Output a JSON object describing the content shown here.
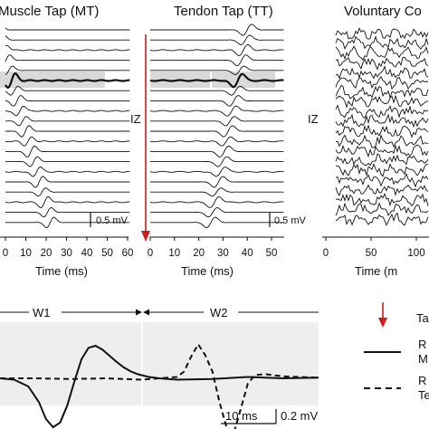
{
  "panels": {
    "mt": {
      "title": "Muscle Tap (MT)",
      "xlabel": "Time (ms)",
      "xticks": [
        "0",
        "10",
        "20",
        "30",
        "40",
        "50",
        "60"
      ],
      "scalebar": "0.5 mV",
      "iz_label": "IZ"
    },
    "tt": {
      "title": "Tendon Tap (TT)",
      "xlabel": "Time (ms)",
      "xticks": [
        "0",
        "10",
        "20",
        "30",
        "40",
        "50"
      ],
      "scalebar": "0.5 mV"
    },
    "vc": {
      "title": "Voluntary Co",
      "xlabel": "Time (m",
      "xticks": [
        "0",
        "50",
        "100"
      ],
      "iz_label": "IZ"
    }
  },
  "bottom": {
    "window1": "W1",
    "window2": "W2",
    "time_scalebar": "10 ms",
    "amp_scalebar": "0.2 mV"
  },
  "legend": {
    "tap_label": "Ta",
    "line1_label_a": "R",
    "line1_label_b": "M",
    "line2_label_a": "R",
    "line2_label_b": "Te"
  },
  "colors": {
    "tap_arrow": "#cc1f1f",
    "shade": "#d9d9d9",
    "bottom_bg": "#eeeeee",
    "trace": "#111111"
  },
  "chart_data": [
    {
      "type": "line",
      "panel": "Muscle Tap (MT)",
      "xlabel": "Time (ms)",
      "xlim": [
        0,
        60
      ],
      "channels": 20,
      "highlighted_channel": 6,
      "shaded_window_ms": [
        0,
        52
      ],
      "scalebar_mV": 0.5,
      "peak_latency_ms": [
        {
          "channel": 6,
          "latency": 3
        },
        {
          "channel": 20,
          "latency": 22
        }
      ]
    },
    {
      "type": "line",
      "panel": "Tendon Tap (TT)",
      "xlabel": "Time (ms)",
      "xlim": [
        0,
        50
      ],
      "channels": 20,
      "highlighted_channel": 6,
      "shaded_window_ms": [
        0,
        47
      ],
      "scalebar_mV": 0.5,
      "peak_latency_ms": [
        {
          "channel": 1,
          "latency": 40
        },
        {
          "channel": 20,
          "latency": 25
        }
      ]
    },
    {
      "type": "line",
      "panel": "Voluntary Co",
      "xlabel": "Time (m",
      "xlim": [
        0,
        110
      ],
      "channels": 20
    },
    {
      "type": "line",
      "panel": "bottom",
      "windows": [
        "W1",
        "W2"
      ],
      "scalebars": {
        "time_ms": 10,
        "amplitude_mV": 0.2
      },
      "series": [
        {
          "style": "solid",
          "x": [
            0,
            4,
            8,
            11,
            13,
            15,
            17,
            19,
            21,
            23,
            25,
            27,
            29,
            31,
            33,
            35,
            37,
            39,
            42,
            45,
            50,
            60,
            70,
            80,
            90
          ],
          "y": [
            0.0,
            -0.02,
            -0.12,
            -0.35,
            -0.6,
            -0.72,
            -0.65,
            -0.4,
            -0.05,
            0.28,
            0.45,
            0.48,
            0.42,
            0.33,
            0.24,
            0.16,
            0.1,
            0.06,
            0.02,
            0.0,
            -0.02,
            -0.01,
            0.02,
            0.0,
            0.01
          ]
        },
        {
          "style": "dashed",
          "x": [
            0,
            10,
            20,
            30,
            40,
            50,
            52,
            54,
            56,
            58,
            60,
            62,
            64,
            66,
            68,
            70,
            72,
            75,
            80,
            90
          ],
          "y": [
            0.0,
            0.0,
            -0.01,
            0.0,
            -0.02,
            0.02,
            0.1,
            0.32,
            0.5,
            0.34,
            0.1,
            -0.35,
            -0.72,
            -0.82,
            -0.45,
            -0.08,
            0.05,
            0.06,
            0.03,
            0.01
          ]
        }
      ]
    }
  ]
}
